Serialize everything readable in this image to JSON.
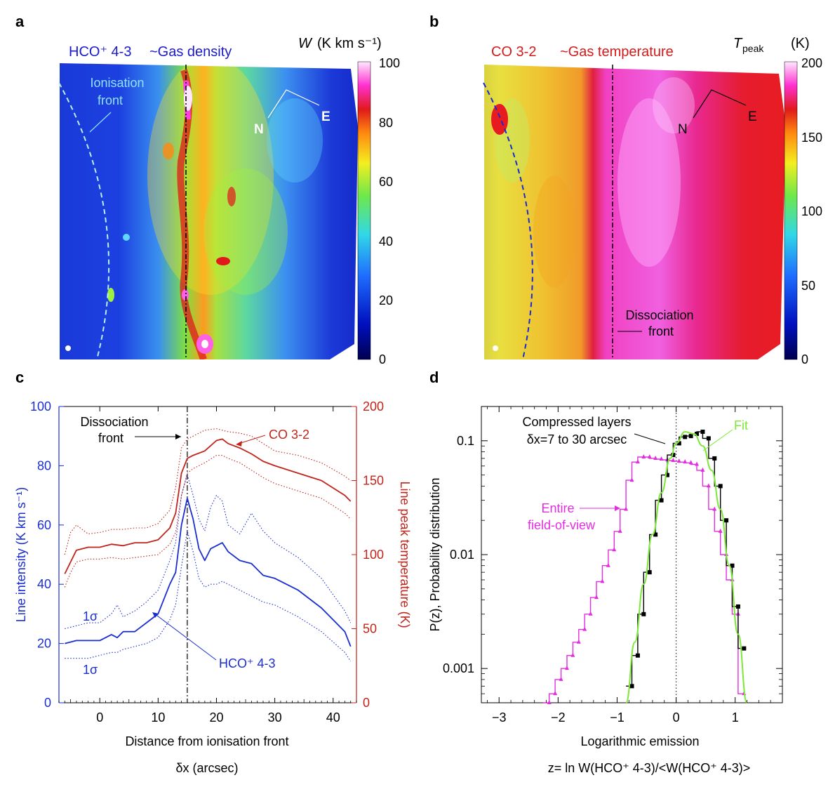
{
  "panels": {
    "a": {
      "letter": "a",
      "title_part1": "HCO⁺ 4-3",
      "title_part2": "~Gas density",
      "colorbar_title_var": "W",
      "colorbar_title_unit": "(K km s⁻¹)",
      "colorbar_ticks": [
        "100",
        "80",
        "60",
        "40",
        "20",
        "0"
      ],
      "annotation_front": "Ionisation",
      "annotation_front2": "front",
      "compass_n": "N",
      "compass_e": "E",
      "colors": {
        "title": "#1a1acc",
        "annotation": "#8fe3ff",
        "dashed_line": "#b8f0f0"
      }
    },
    "b": {
      "letter": "b",
      "title_part1": "CO 3-2",
      "title_part2": "~Gas temperature",
      "colorbar_title_var": "T",
      "colorbar_title_sub": "peak",
      "colorbar_title_unit": "(K)",
      "colorbar_ticks": [
        "200",
        "150",
        "100",
        "50",
        "0"
      ],
      "annotation_front": "Dissociation",
      "annotation_front2": "front",
      "compass_n": "N",
      "compass_e": "E",
      "colors": {
        "title": "#d41a1a",
        "dashed_line": "#1a2ad0"
      }
    },
    "c": {
      "letter": "c",
      "label_dissociation": "Dissociation",
      "label_dissociation2": "front",
      "label_co": "CO 3-2",
      "label_hco": "HCO⁺ 4-3",
      "label_sigma_top": "1σ",
      "label_sigma_bottom": "1σ",
      "colors": {
        "hco": "#1a2ed0",
        "co": "#c0241a"
      }
    },
    "d": {
      "letter": "d",
      "label_compressed": "Compressed layers",
      "label_compressed2": "δx=7 to 30 arcsec",
      "label_fit": "Fit",
      "label_entire": "Entire",
      "label_entire2": "field-of-view",
      "colors": {
        "compressed": "#000000",
        "fit": "#7ee83a",
        "entire": "#e22ee0"
      }
    }
  },
  "chart_data": [
    {
      "panel": "c",
      "type": "line",
      "xlabel": "Distance from ionisation front",
      "xlabel2": "δx (arcsec)",
      "ylabel_left": "Line intensity (K km s⁻¹)",
      "ylabel_right": "Line peak temperature (K)",
      "xlim": [
        -7,
        44
      ],
      "ylim_left": [
        0,
        100
      ],
      "ylim_right": [
        0,
        200
      ],
      "x_ticks": [
        "0",
        "10",
        "20",
        "30",
        "40"
      ],
      "y_left_ticks": [
        "0",
        "20",
        "40",
        "60",
        "80",
        "100"
      ],
      "y_right_ticks": [
        "0",
        "50",
        "100",
        "150",
        "200"
      ],
      "vline_x": 15,
      "series": [
        {
          "name": "HCO+ 4-3",
          "axis": "left",
          "style": "solid",
          "x": [
            -6,
            -4,
            -2,
            0,
            2,
            3,
            4,
            6,
            8,
            10,
            12,
            13,
            14,
            15,
            16,
            17,
            18,
            19,
            20,
            21,
            22,
            24,
            26,
            28,
            30,
            34,
            38,
            42,
            43
          ],
          "y": [
            20,
            21,
            21,
            21,
            23,
            22,
            24,
            24,
            27,
            30,
            40,
            44,
            60,
            69,
            62,
            52,
            48,
            52,
            53,
            54,
            51,
            48,
            47,
            43,
            42,
            38,
            32,
            24,
            19
          ]
        },
        {
          "name": "HCO+ 4-3 +1σ",
          "axis": "left",
          "style": "dotted",
          "x": [
            -6,
            -4,
            -2,
            0,
            2,
            3,
            4,
            6,
            8,
            10,
            12,
            13,
            14,
            15,
            16,
            17,
            18,
            19,
            20,
            21,
            22,
            24,
            26,
            28,
            30,
            34,
            38,
            42,
            43
          ],
          "y": [
            25,
            26,
            27,
            27,
            30,
            33,
            29,
            31,
            34,
            38,
            48,
            54,
            70,
            77,
            70,
            62,
            58,
            66,
            70,
            68,
            60,
            57,
            64,
            58,
            54,
            49,
            42,
            31,
            27
          ]
        },
        {
          "name": "HCO+ 4-3 -1σ",
          "axis": "left",
          "style": "dotted",
          "x": [
            -6,
            -4,
            -2,
            0,
            2,
            3,
            4,
            6,
            8,
            10,
            12,
            13,
            14,
            15,
            16,
            17,
            18,
            19,
            20,
            21,
            22,
            24,
            26,
            28,
            30,
            34,
            38,
            42,
            43
          ],
          "y": [
            15,
            15,
            15,
            16,
            17,
            17,
            18,
            19,
            20,
            22,
            28,
            33,
            46,
            58,
            51,
            42,
            39,
            40,
            40,
            41,
            40,
            38,
            36,
            34,
            33,
            29,
            24,
            17,
            14
          ]
        },
        {
          "name": "CO 3-2",
          "axis": "right",
          "style": "solid",
          "x": [
            -6,
            -5,
            -4,
            -2,
            0,
            2,
            4,
            6,
            8,
            10,
            12,
            13,
            14,
            15,
            16,
            18,
            20,
            21,
            22,
            24,
            26,
            28,
            30,
            34,
            38,
            42,
            43
          ],
          "y": [
            87,
            95,
            103,
            105,
            105,
            107,
            106,
            108,
            108,
            110,
            118,
            128,
            155,
            165,
            167,
            170,
            177,
            178,
            175,
            172,
            168,
            163,
            160,
            155,
            150,
            140,
            136
          ]
        },
        {
          "name": "CO 3-2 +1σ",
          "axis": "right",
          "style": "dotted",
          "x": [
            -6,
            -5,
            -4,
            -2,
            0,
            2,
            4,
            6,
            8,
            10,
            12,
            13,
            14,
            15,
            16,
            18,
            20,
            21,
            22,
            24,
            26,
            28,
            30,
            34,
            38,
            42,
            43
          ],
          "y": [
            100,
            115,
            120,
            114,
            115,
            117,
            117,
            118,
            118,
            121,
            130,
            145,
            172,
            178,
            180,
            184,
            185,
            184,
            183,
            182,
            180,
            175,
            170,
            167,
            162,
            153,
            150
          ]
        },
        {
          "name": "CO 3-2 -1σ",
          "axis": "right",
          "style": "dotted",
          "x": [
            -6,
            -5,
            -4,
            -2,
            0,
            2,
            4,
            6,
            8,
            10,
            12,
            13,
            14,
            15,
            16,
            18,
            20,
            21,
            22,
            24,
            26,
            28,
            30,
            34,
            38,
            42,
            43
          ],
          "y": [
            78,
            88,
            95,
            97,
            97,
            98,
            97,
            98,
            99,
            100,
            107,
            115,
            140,
            155,
            158,
            162,
            167,
            167,
            165,
            162,
            157,
            152,
            148,
            143,
            138,
            128,
            124
          ]
        }
      ]
    },
    {
      "panel": "d",
      "type": "line",
      "yscale": "log",
      "xlabel": "Logarithmic emission",
      "xlabel2": "z= ln W(HCO⁺ 4-3)/<W(HCO⁺ 4-3)>",
      "ylabel": "P(z), Probability distribution",
      "xlim": [
        -3.3,
        1.8
      ],
      "ylim": [
        0.0005,
        0.2
      ],
      "x_ticks": [
        "−3",
        "−2",
        "−1",
        "0",
        "1"
      ],
      "y_ticks": [
        "0.001",
        "0.01",
        "0.1"
      ],
      "vline_x": 0,
      "series": [
        {
          "name": "Entire field-of-view",
          "style": "step",
          "x": [
            -2.2,
            -2.1,
            -2.0,
            -1.9,
            -1.8,
            -1.7,
            -1.6,
            -1.5,
            -1.4,
            -1.3,
            -1.2,
            -1.1,
            -1.0,
            -0.9,
            -0.8,
            -0.7,
            -0.6,
            -0.5,
            -0.4,
            -0.3,
            -0.2,
            -0.1,
            0.0,
            0.1,
            0.2,
            0.3,
            0.4,
            0.5,
            0.6,
            0.7,
            0.8,
            0.9,
            1.0,
            1.1
          ],
          "y": [
            0.0005,
            0.0006,
            0.0008,
            0.001,
            0.0013,
            0.0017,
            0.0022,
            0.003,
            0.0042,
            0.0058,
            0.008,
            0.011,
            0.016,
            0.025,
            0.045,
            0.065,
            0.072,
            0.072,
            0.07,
            0.069,
            0.068,
            0.067,
            0.066,
            0.065,
            0.064,
            0.062,
            0.055,
            0.04,
            0.025,
            0.016,
            0.01,
            0.006,
            0.003,
            0.0006
          ]
        },
        {
          "name": "Compressed layers δx=7 to 30 arcsec",
          "style": "step",
          "x": [
            -0.8,
            -0.7,
            -0.6,
            -0.5,
            -0.4,
            -0.3,
            -0.2,
            -0.1,
            0.0,
            0.1,
            0.2,
            0.3,
            0.4,
            0.5,
            0.6,
            0.7,
            0.8,
            0.9,
            1.0,
            1.1
          ],
          "y": [
            0.0007,
            0.0013,
            0.003,
            0.007,
            0.015,
            0.03,
            0.05,
            0.075,
            0.095,
            0.108,
            0.11,
            0.115,
            0.12,
            0.105,
            0.07,
            0.04,
            0.02,
            0.008,
            0.0035,
            0.0015
          ]
        },
        {
          "name": "Fit",
          "style": "smooth",
          "x": [
            -0.85,
            -0.7,
            -0.55,
            -0.4,
            -0.25,
            -0.1,
            0.0,
            0.15,
            0.3,
            0.45,
            0.6,
            0.75,
            0.9,
            1.05,
            1.2
          ],
          "y": [
            0.0005,
            0.0017,
            0.0055,
            0.015,
            0.035,
            0.07,
            0.095,
            0.12,
            0.115,
            0.09,
            0.055,
            0.025,
            0.008,
            0.002,
            0.0005
          ]
        }
      ]
    }
  ]
}
